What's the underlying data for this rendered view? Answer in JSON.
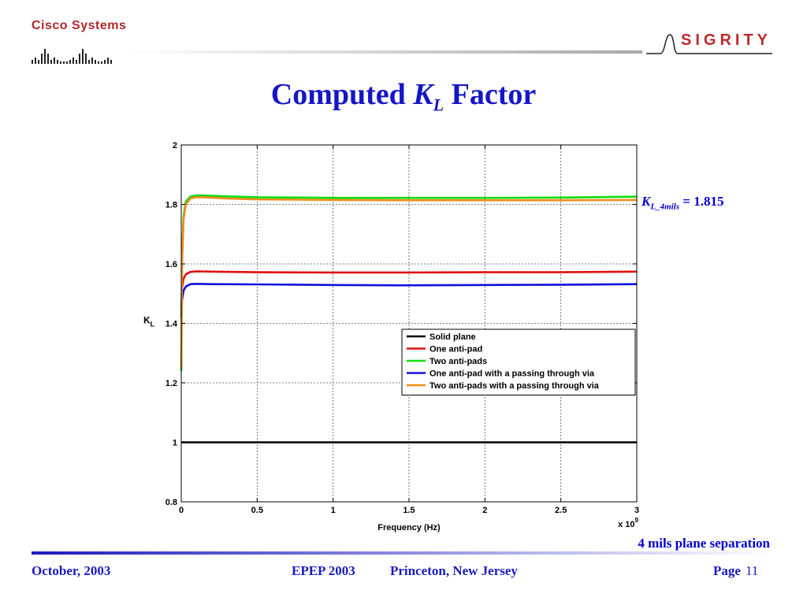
{
  "header": {
    "cisco_logo_text": "Cisco Systems",
    "sigrity_logo_text": "SIGRITY"
  },
  "title": {
    "prefix": "Computed",
    "symbol": "K",
    "subscript": "L",
    "suffix": "Factor"
  },
  "annotation": {
    "symbol": "K",
    "subscript": "L_4mils",
    "equals": "= 1.815"
  },
  "caption": "4 mils plane separation",
  "footer": {
    "date": "October, 2003",
    "conference": "EPEP 2003",
    "location": "Princeton, New Jersey",
    "page_label": "Page",
    "page_number": "11"
  },
  "colors": {
    "title": "#1515c8",
    "cisco_red": "#b0262a",
    "sigrity_red": "#c0282d",
    "footer_blue": "#1a1ac0"
  },
  "chart_data": {
    "type": "line",
    "xlabel": "Frequency (Hz)",
    "x_multiplier": "x 10",
    "x_multiplier_exp": "9",
    "ylabel": "K",
    "ylabel_sub": "L",
    "xlim": [
      0,
      3
    ],
    "ylim": [
      0.8,
      2
    ],
    "xticks": [
      0,
      0.5,
      1,
      1.5,
      2,
      2.5,
      3
    ],
    "xtick_labels": [
      "0",
      "0.5",
      "1",
      "1.5",
      "2",
      "2.5",
      "3"
    ],
    "yticks": [
      0.8,
      1,
      1.2,
      1.4,
      1.6,
      1.8,
      2
    ],
    "ytick_labels": [
      "0.8",
      "1",
      "1.2",
      "1.4",
      "1.6",
      "1.8",
      "2"
    ],
    "grid": true,
    "legend_position": "center-right",
    "series": [
      {
        "name": "Solid plane",
        "color": "#000000",
        "x": [
          0,
          0.5,
          1,
          1.5,
          2,
          2.5,
          3
        ],
        "y": [
          1.0,
          1.0,
          1.0,
          1.0,
          1.0,
          1.0,
          1.0
        ]
      },
      {
        "name": "One anti-pad",
        "color": "#e01010",
        "x": [
          0,
          0.005,
          0.015,
          0.03,
          0.06,
          0.1,
          0.2,
          0.5,
          1,
          1.5,
          2,
          2.5,
          3
        ],
        "y": [
          1.45,
          1.52,
          1.55,
          1.565,
          1.573,
          1.575,
          1.574,
          1.572,
          1.571,
          1.571,
          1.572,
          1.572,
          1.574
        ]
      },
      {
        "name": "Two anti-pads",
        "color": "#10dd10",
        "x": [
          0,
          0.005,
          0.015,
          0.03,
          0.06,
          0.1,
          0.15,
          0.3,
          0.5,
          1,
          1.5,
          2,
          2.5,
          3
        ],
        "y": [
          1.24,
          1.62,
          1.76,
          1.81,
          1.826,
          1.83,
          1.83,
          1.827,
          1.824,
          1.822,
          1.822,
          1.822,
          1.823,
          1.826
        ]
      },
      {
        "name": "One anti-pad with a passing through via",
        "color": "#1010dd",
        "x": [
          0,
          0.005,
          0.015,
          0.03,
          0.06,
          0.1,
          0.2,
          0.5,
          1,
          1.5,
          2,
          2.5,
          3
        ],
        "y": [
          1.42,
          1.48,
          1.51,
          1.524,
          1.532,
          1.533,
          1.532,
          1.531,
          1.529,
          1.528,
          1.529,
          1.53,
          1.532
        ]
      },
      {
        "name": "Two anti-pads with a passing through via",
        "color": "#f08c1c",
        "x": [
          0,
          0.005,
          0.015,
          0.03,
          0.06,
          0.1,
          0.15,
          0.3,
          0.5,
          1,
          1.5,
          2,
          2.5,
          3
        ],
        "y": [
          1.25,
          1.6,
          1.75,
          1.8,
          1.82,
          1.824,
          1.824,
          1.82,
          1.817,
          1.815,
          1.814,
          1.814,
          1.814,
          1.815
        ]
      }
    ]
  }
}
